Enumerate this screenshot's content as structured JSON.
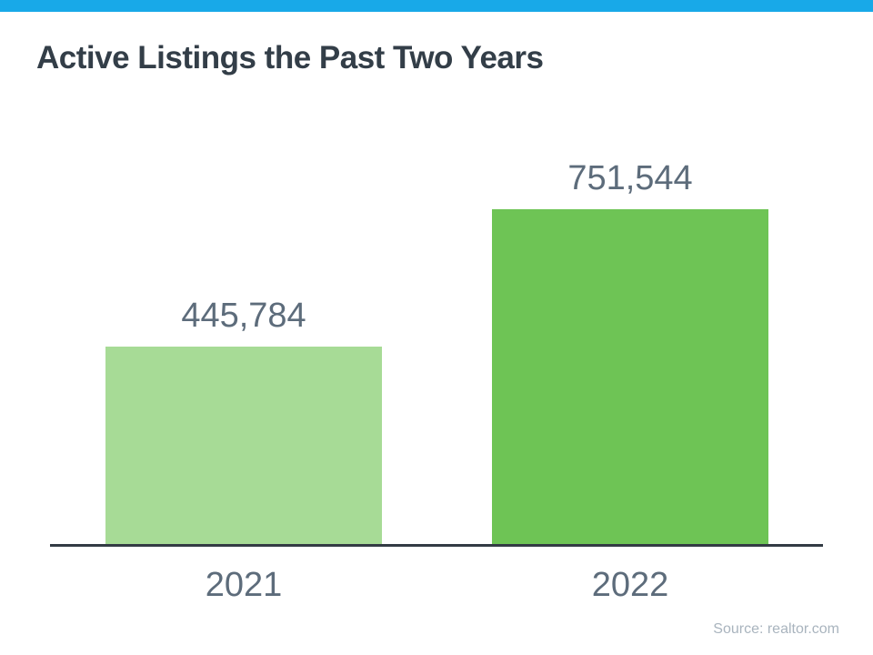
{
  "title": "Active Listings the Past Two Years",
  "source": "Source: realtor.com",
  "colors": {
    "accent_bar": "#18a9e8",
    "title_text": "#333e48",
    "label_text": "#5d6c7b",
    "axis_line": "#333b44",
    "source_text": "#a9b4be",
    "bar_2021": "#a7db96",
    "bar_2022": "#6ec455"
  },
  "chart_data": {
    "type": "bar",
    "title": "Active Listings the Past Two Years",
    "categories": [
      "2021",
      "2022"
    ],
    "values": [
      445784,
      751544
    ],
    "value_labels": [
      "445,784",
      "751,544"
    ],
    "bar_colors": [
      "#a7db96",
      "#6ec455"
    ],
    "xlabel": "",
    "ylabel": "",
    "ylim": [
      0,
      760000
    ],
    "grid": false,
    "legend": false,
    "annotations": [
      "Source: realtor.com"
    ]
  }
}
